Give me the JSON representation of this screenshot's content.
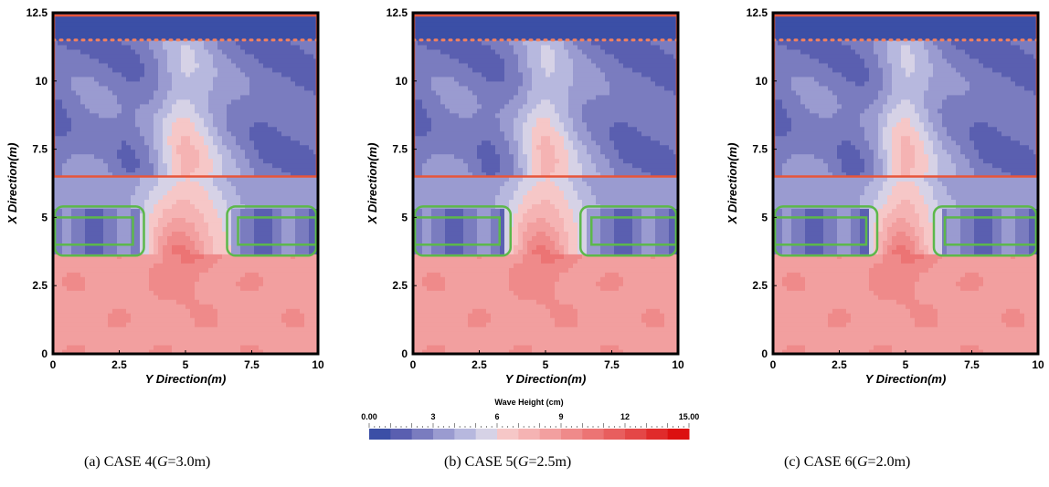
{
  "chart_data": [
    {
      "type": "heatmap",
      "caption": {
        "prefix": "(a)  CASE  4(",
        "var": "G",
        "value": "=3.0m)"
      },
      "xlabel": "Y Direction(m)",
      "ylabel": "X Direction(m)",
      "xlim": [
        0,
        10
      ],
      "ylim": [
        0,
        12.5
      ],
      "xticks": [
        "0",
        "2.5",
        "5",
        "7.5",
        "10"
      ],
      "yticks": [
        "0",
        "2.5",
        "5",
        "7.5",
        "10",
        "12.5"
      ],
      "gap_G_m": 3.0,
      "structures": {
        "red_box": {
          "y": [
            0,
            10
          ],
          "x": [
            6.5,
            12.4
          ]
        },
        "dotted_line_x": 11.5,
        "left_block": {
          "y": [
            0,
            3.5
          ],
          "x": [
            3.6,
            5.4
          ]
        },
        "right_block": {
          "y": [
            6.5,
            10
          ],
          "x": [
            3.6,
            5.4
          ]
        }
      }
    },
    {
      "type": "heatmap",
      "caption": {
        "prefix": "(b)  CASE  5(",
        "var": "G",
        "value": "=2.5m)"
      },
      "xlabel": "Y Direction(m)",
      "ylabel": "X Direction(m)",
      "xlim": [
        0,
        10
      ],
      "ylim": [
        0,
        12.5
      ],
      "xticks": [
        "0",
        "2.5",
        "5",
        "7.5",
        "10"
      ],
      "yticks": [
        "0",
        "2.5",
        "5",
        "7.5",
        "10",
        "12.5"
      ],
      "gap_G_m": 2.5,
      "structures": {
        "red_box": {
          "y": [
            0,
            10
          ],
          "x": [
            6.5,
            12.4
          ]
        },
        "dotted_line_x": 11.5,
        "left_block": {
          "y": [
            0,
            3.75
          ],
          "x": [
            3.6,
            5.4
          ]
        },
        "right_block": {
          "y": [
            6.25,
            10
          ],
          "x": [
            3.6,
            5.4
          ]
        }
      }
    },
    {
      "type": "heatmap",
      "caption": {
        "prefix": "(c)  CASE  6(",
        "var": "G",
        "value": "=2.0m)"
      },
      "xlabel": "Y Direction(m)",
      "ylabel": "X Direction(m)",
      "xlim": [
        0,
        10
      ],
      "ylim": [
        0,
        12.5
      ],
      "xticks": [
        "0",
        "2.5",
        "5",
        "7.5",
        "10"
      ],
      "yticks": [
        "0",
        "2.5",
        "5",
        "7.5",
        "10",
        "12.5"
      ],
      "gap_G_m": 2.0,
      "structures": {
        "red_box": {
          "y": [
            0,
            10
          ],
          "x": [
            6.5,
            12.4
          ]
        },
        "dotted_line_x": 11.5,
        "left_block": {
          "y": [
            0,
            4.0
          ],
          "x": [
            3.6,
            5.4
          ]
        },
        "right_block": {
          "y": [
            6.0,
            10
          ],
          "x": [
            3.6,
            5.4
          ]
        }
      }
    }
  ],
  "colorbar": {
    "title": "Wave Height (cm)",
    "min": 0,
    "max": 15,
    "tick_labels": [
      "0.00",
      "3",
      "6",
      "9",
      "12",
      "15.00"
    ],
    "tick_values": [
      0,
      3,
      6,
      9,
      12,
      15
    ],
    "colors": [
      "#3b4fa6",
      "#5a5fb0",
      "#7a7cbf",
      "#9a9bd0",
      "#b7b8de",
      "#d6d2e6",
      "#f6c7c7",
      "#f5b3b3",
      "#f29f9f",
      "#ef8a8a",
      "#ec7474",
      "#e85e5e",
      "#e44747",
      "#e02b2b",
      "#dc1010"
    ]
  },
  "colors": {
    "breakwater_box": "#e8553a",
    "dotted_line": "#f2815f",
    "blocks": "#5cb84a"
  }
}
